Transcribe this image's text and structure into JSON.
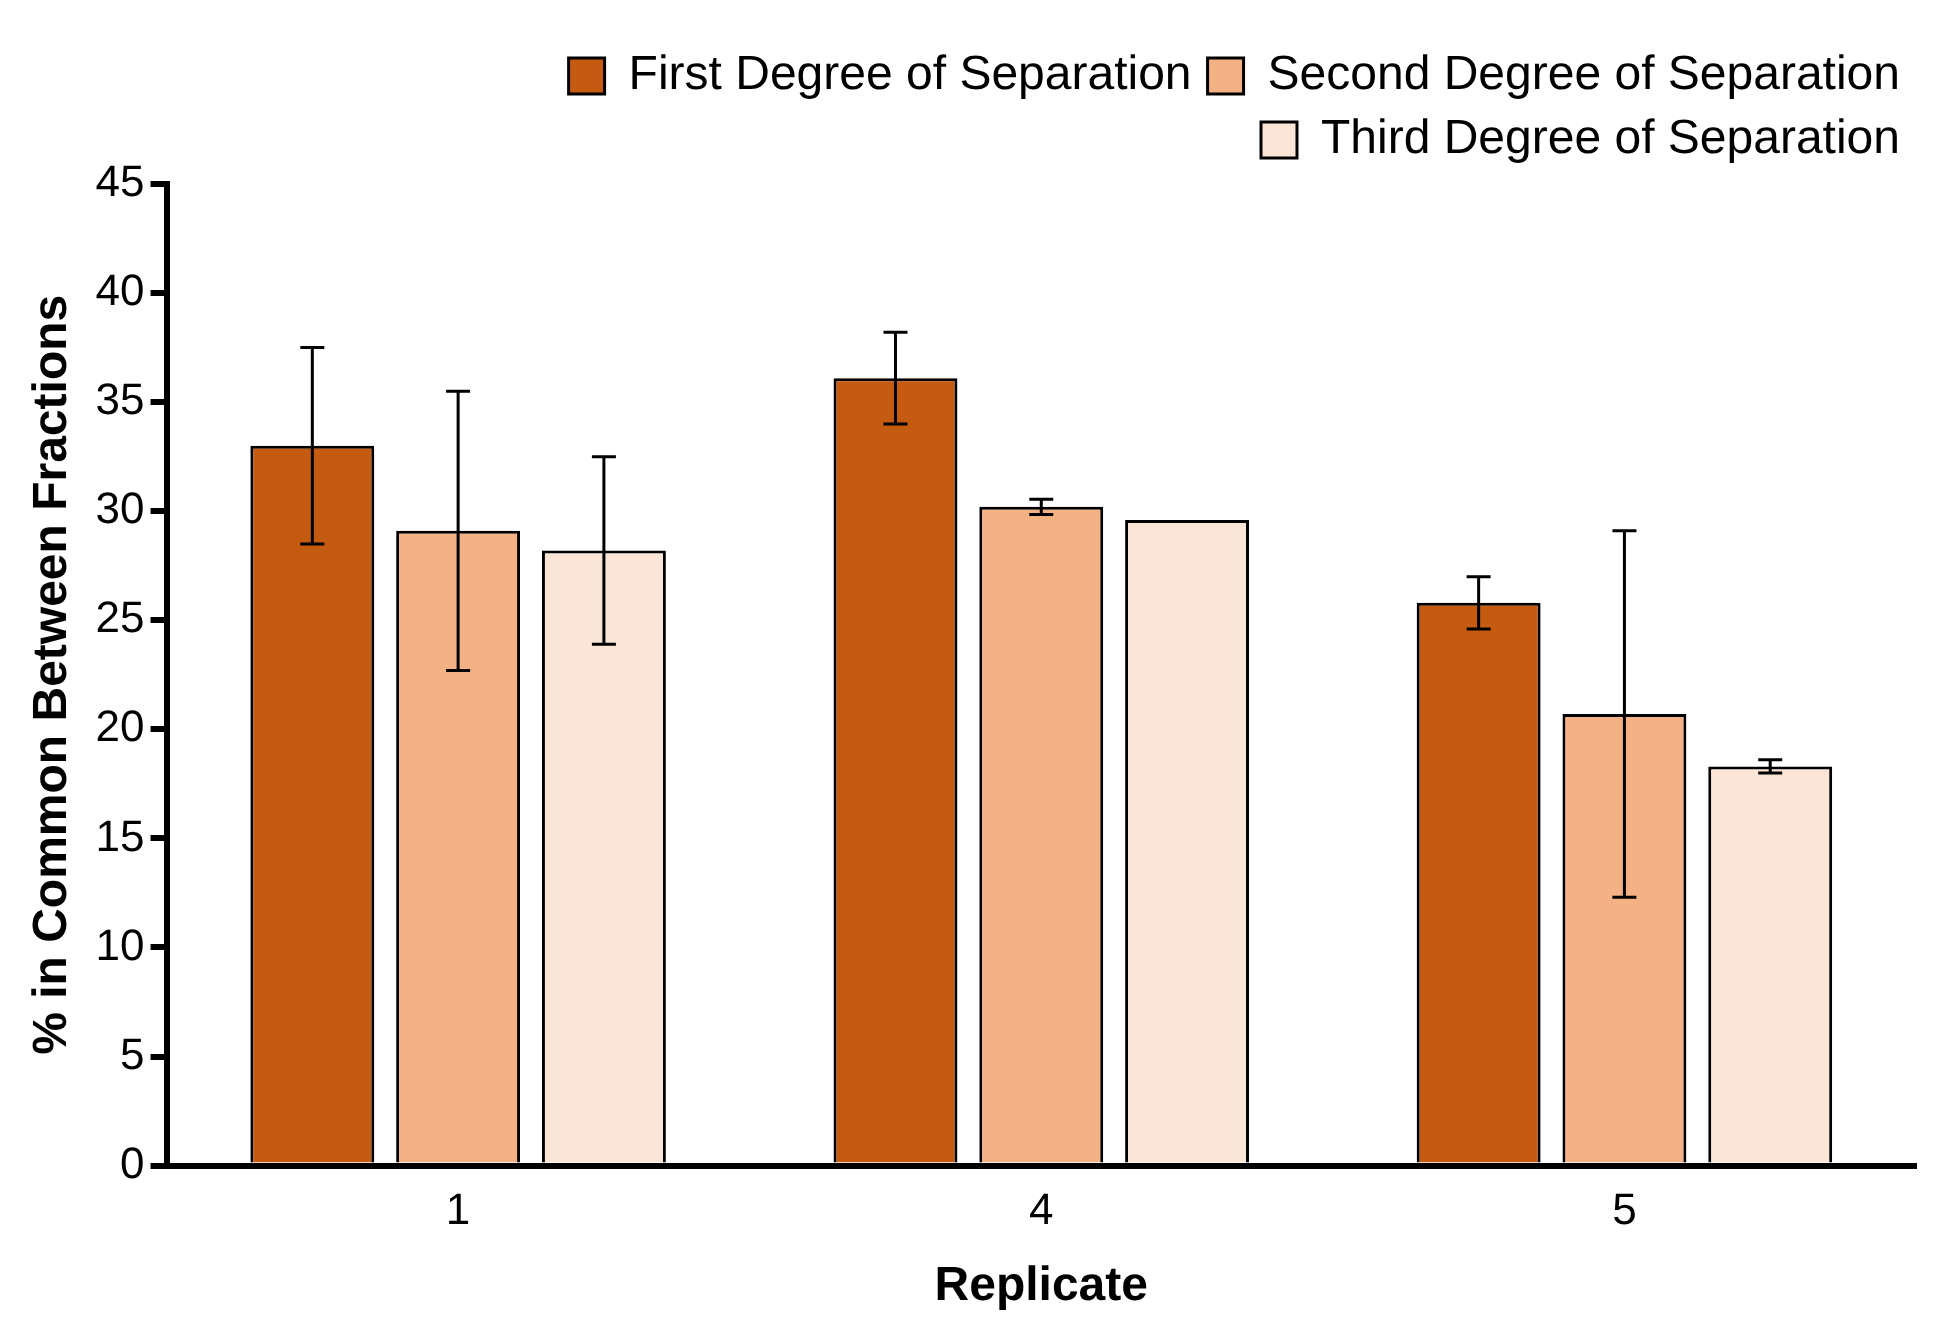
{
  "chart_data": {
    "type": "bar",
    "xlabel": "Replicate",
    "ylabel": "% in Common Between Fractions",
    "categories": [
      "1",
      "4",
      "5"
    ],
    "series": [
      {
        "name": "First Degree of Separation",
        "color": "#c55a11",
        "values": [
          33.0,
          36.1,
          25.8
        ],
        "errors": [
          4.5,
          2.1,
          1.2
        ]
      },
      {
        "name": "Second Degree of Separation",
        "color": "#f4b183",
        "values": [
          29.1,
          30.2,
          20.7
        ],
        "errors": [
          6.4,
          0.35,
          8.4
        ]
      },
      {
        "name": "Third Degree of Separation",
        "color": "#fbe5d6",
        "values": [
          28.2,
          29.6,
          18.3
        ],
        "errors": [
          4.3,
          null,
          0.3
        ]
      }
    ],
    "ylim": [
      0,
      45
    ],
    "yticks": [
      0,
      5,
      10,
      15,
      20,
      25,
      30,
      35,
      40,
      45
    ],
    "grid": false,
    "legend": "top right"
  }
}
